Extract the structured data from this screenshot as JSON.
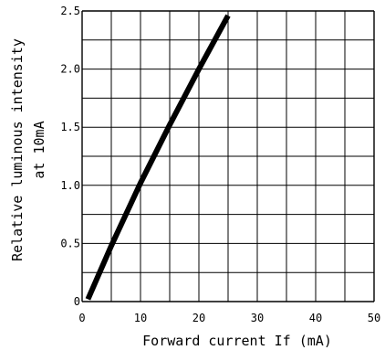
{
  "chart_data": {
    "type": "line",
    "title": "",
    "xlabel": "Forward current If  (mA)",
    "ylabel_lines": [
      "Relative luminous intensity",
      "at 10mA"
    ],
    "xlim": [
      0,
      50
    ],
    "ylim": [
      0,
      2.5
    ],
    "grid": true,
    "x_ticks": [
      0,
      5,
      10,
      15,
      20,
      25,
      30,
      35,
      40,
      45,
      50
    ],
    "x_tick_labels": [
      "0",
      "",
      "10",
      "",
      "20",
      "",
      "30",
      "",
      "40",
      "",
      "50"
    ],
    "y_ticks": [
      0,
      0.25,
      0.5,
      0.75,
      1.0,
      1.25,
      1.5,
      1.75,
      2.0,
      2.25,
      2.5
    ],
    "y_tick_labels": [
      "0",
      "",
      "0.5",
      "",
      "1.0",
      "",
      "1.5",
      "",
      "2.0",
      "",
      "2.5"
    ],
    "series": [
      {
        "color": "#000000",
        "x": [
          1,
          5,
          10,
          15,
          20,
          25
        ],
        "y": [
          0.02,
          0.48,
          1.02,
          1.52,
          2.0,
          2.46
        ]
      }
    ]
  }
}
